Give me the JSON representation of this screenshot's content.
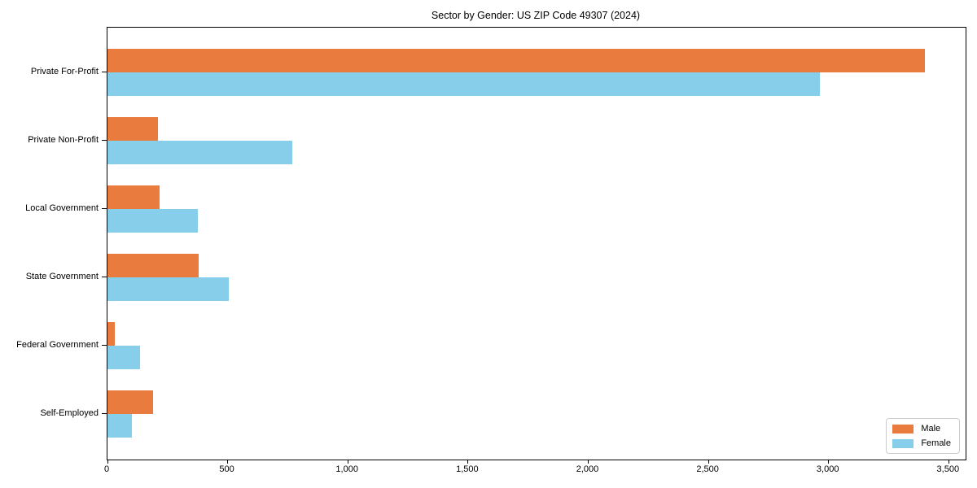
{
  "chart_data": {
    "type": "bar",
    "orientation": "horizontal",
    "title": "Sector by Gender: US ZIP Code 49307 (2024)",
    "categories": [
      "Private For-Profit",
      "Private Non-Profit",
      "Local Government",
      "State Government",
      "Federal Government",
      "Self-Employed"
    ],
    "series": [
      {
        "name": "Male",
        "color": "#e87b3d",
        "values": [
          3400,
          210,
          215,
          380,
          30,
          190
        ]
      },
      {
        "name": "Female",
        "color": "#87ceeb",
        "values": [
          2965,
          770,
          375,
          505,
          135,
          100
        ]
      }
    ],
    "xlim": [
      0,
      3570
    ],
    "xticks": [
      0,
      500,
      1000,
      1500,
      2000,
      2500,
      3000,
      3500
    ],
    "xtick_labels": [
      "0",
      "500",
      "1,000",
      "1,500",
      "2,000",
      "2,500",
      "3,000",
      "3,500"
    ],
    "xlabel": "",
    "ylabel": "",
    "grid": false,
    "legend_position": "lower right"
  },
  "legend": {
    "items": [
      {
        "label": "Male",
        "color": "#e87b3d"
      },
      {
        "label": "Female",
        "color": "#87ceeb"
      }
    ]
  }
}
